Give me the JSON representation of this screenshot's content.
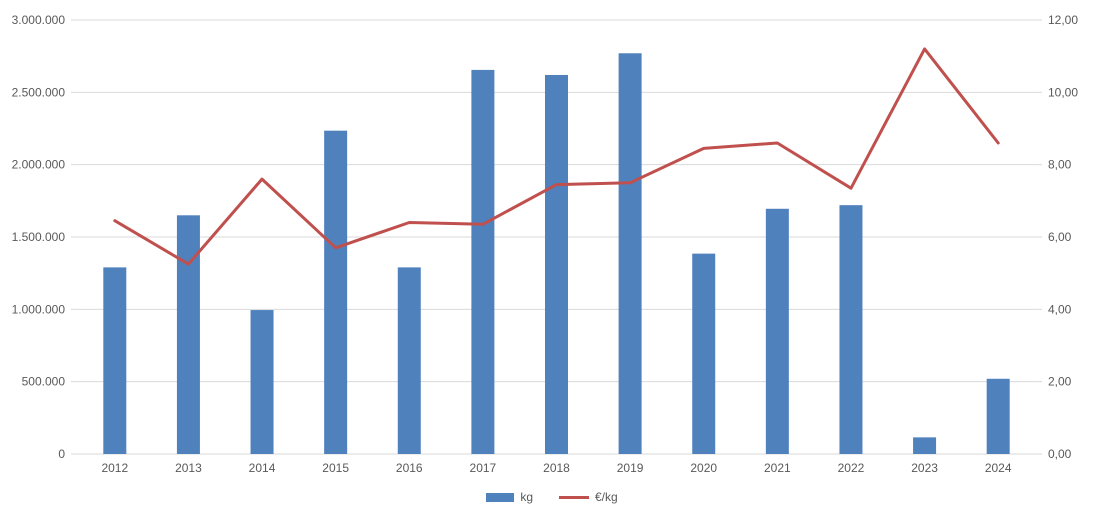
{
  "chart_data": {
    "type": "combo-bar-line",
    "title": "",
    "categories": [
      "2012",
      "2013",
      "2014",
      "2015",
      "2016",
      "2017",
      "2018",
      "2019",
      "2020",
      "2021",
      "2022",
      "2023",
      "2024"
    ],
    "series": [
      {
        "name": "kg",
        "type": "bar",
        "axis": "left",
        "color": "#4F81BD",
        "values": [
          1290000,
          1650000,
          995000,
          2235000,
          1290000,
          2655000,
          2620000,
          2770000,
          1385000,
          1695000,
          1720000,
          115000,
          520000
        ]
      },
      {
        "name": "€/kg",
        "type": "line",
        "axis": "right",
        "color": "#C0504D",
        "values": [
          6.45,
          5.25,
          7.6,
          5.7,
          6.4,
          6.35,
          7.45,
          7.5,
          8.45,
          8.6,
          7.35,
          11.2,
          8.6
        ]
      }
    ],
    "left_axis": {
      "min": 0,
      "max": 3000000,
      "step": 500000,
      "tick_labels": [
        "0",
        "500.000",
        "1.000.000",
        "1.500.000",
        "2.000.000",
        "2.500.000",
        "3.000.000"
      ]
    },
    "right_axis": {
      "min": 0,
      "max": 12,
      "step": 2,
      "tick_labels": [
        "0,00",
        "2,00",
        "4,00",
        "6,00",
        "8,00",
        "10,00",
        "12,00"
      ]
    },
    "legend": [
      {
        "label": "kg",
        "swatch": "bar",
        "color": "#4F81BD"
      },
      {
        "label": "€/kg",
        "swatch": "line",
        "color": "#C0504D"
      }
    ],
    "style": {
      "grid_color": "#D9D9D9",
      "text_color": "#595959",
      "background": "#FFFFFF",
      "grid_on": true,
      "legend_position": "bottom"
    }
  }
}
